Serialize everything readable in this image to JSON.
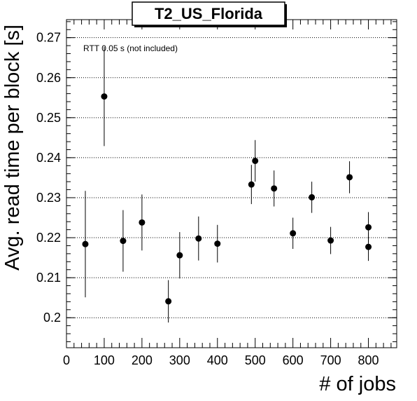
{
  "chart_data": {
    "type": "scatter",
    "title": "T2_US_Florida",
    "xlabel": "# of jobs",
    "ylabel": "Avg. read time per block [s]",
    "annotation": "RTT 0.05 s (not included)",
    "xlim": [
      0,
      875
    ],
    "ylim": [
      0.1925,
      0.2745
    ],
    "x_ticks": [
      0,
      100,
      200,
      300,
      400,
      500,
      600,
      700,
      800
    ],
    "y_ticks": [
      0.2,
      0.21,
      0.22,
      0.23,
      0.24,
      0.25,
      0.26,
      0.27
    ],
    "y_tick_labels": [
      "0.2",
      "0.21",
      "0.22",
      "0.23",
      "0.24",
      "0.25",
      "0.26",
      "0.27"
    ],
    "grid": "horizontal dotted",
    "points": [
      {
        "x": 50,
        "y": 0.2184,
        "err": 0.0133
      },
      {
        "x": 100,
        "y": 0.2553,
        "err": 0.0124
      },
      {
        "x": 150,
        "y": 0.2192,
        "err": 0.0077
      },
      {
        "x": 200,
        "y": 0.2238,
        "err": 0.007
      },
      {
        "x": 270,
        "y": 0.2041,
        "err": 0.0053
      },
      {
        "x": 300,
        "y": 0.2156,
        "err": 0.0058
      },
      {
        "x": 350,
        "y": 0.2198,
        "err": 0.0055
      },
      {
        "x": 400,
        "y": 0.2185,
        "err": 0.0047
      },
      {
        "x": 490,
        "y": 0.2333,
        "err": 0.0049
      },
      {
        "x": 500,
        "y": 0.2392,
        "err": 0.0052
      },
      {
        "x": 550,
        "y": 0.2323,
        "err": 0.0045
      },
      {
        "x": 600,
        "y": 0.2211,
        "err": 0.0039
      },
      {
        "x": 650,
        "y": 0.2301,
        "err": 0.0039
      },
      {
        "x": 700,
        "y": 0.2193,
        "err": 0.0034
      },
      {
        "x": 750,
        "y": 0.2351,
        "err": 0.004
      },
      {
        "x": 800,
        "y": 0.2226,
        "err": 0.0038
      },
      {
        "x": 800,
        "y": 0.2177,
        "err": 0.0035
      }
    ]
  }
}
